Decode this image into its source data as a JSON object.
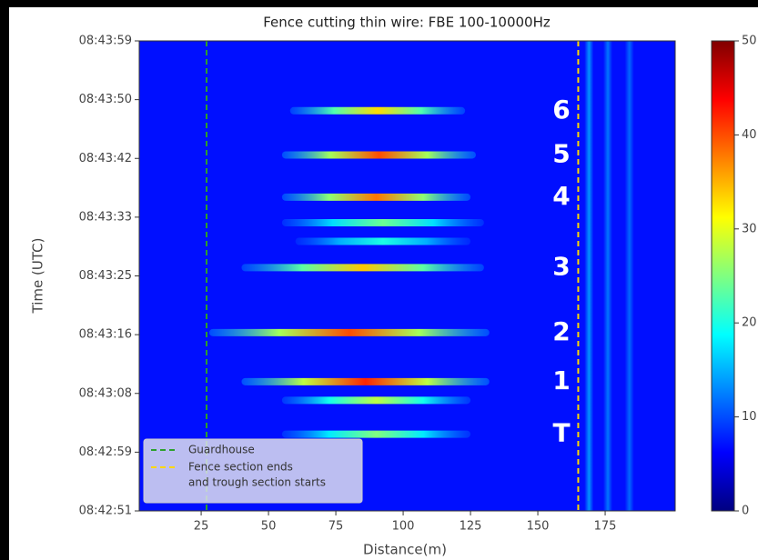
{
  "chart_data": {
    "type": "heatmap",
    "title": "Fence cutting thin wire: FBE 100-10000Hz",
    "xlabel": "Distance(m)",
    "ylabel": "Time (UTC)",
    "xlim": [
      2,
      201
    ],
    "xticks": [
      25,
      50,
      75,
      100,
      125,
      150,
      175
    ],
    "ylim": [
      0,
      68
    ],
    "yticks": [
      {
        "value": 0,
        "label": "08:42:51"
      },
      {
        "value": 8.5,
        "label": "08:42:59"
      },
      {
        "value": 17,
        "label": "08:43:08"
      },
      {
        "value": 25.5,
        "label": "08:43:16"
      },
      {
        "value": 34,
        "label": "08:43:25"
      },
      {
        "value": 42.5,
        "label": "08:43:33"
      },
      {
        "value": 51,
        "label": "08:43:42"
      },
      {
        "value": 59.5,
        "label": "08:43:50"
      },
      {
        "value": 68,
        "label": "08:43:59"
      }
    ],
    "clim": [
      0,
      50
    ],
    "cticks": [
      0,
      10,
      20,
      30,
      40,
      50
    ],
    "colormap": "jet",
    "base_level": 7,
    "events": [
      {
        "label": "6",
        "time": 57.9,
        "x": [
          58,
          123
        ],
        "peak": 33
      },
      {
        "label": "5",
        "time": 51.5,
        "x": [
          55,
          127
        ],
        "peak": 40
      },
      {
        "label": "4",
        "time": 45.4,
        "x": [
          55,
          125
        ],
        "peak": 38
      },
      {
        "label": null,
        "time": 41.7,
        "x": [
          55,
          130
        ],
        "peak": 24
      },
      {
        "label": null,
        "time": 39,
        "x": [
          60,
          125
        ],
        "peak": 20
      },
      {
        "label": "3",
        "time": 35.2,
        "x": [
          40,
          130
        ],
        "peak": 34
      },
      {
        "label": "2",
        "time": 25.8,
        "x": [
          28,
          132
        ],
        "peak": 40
      },
      {
        "label": "1",
        "time": 18.7,
        "x": [
          40,
          132
        ],
        "peak": 42
      },
      {
        "label": null,
        "time": 16,
        "x": [
          55,
          125
        ],
        "peak": 28
      },
      {
        "label": "T",
        "time": 11.1,
        "x": [
          55,
          125
        ],
        "peak": 25
      }
    ],
    "streaks": [
      {
        "distance": 169,
        "level": 16
      },
      {
        "distance": 176,
        "level": 14
      },
      {
        "distance": 184,
        "level": 13
      }
    ],
    "lines": [
      {
        "name": [
          "Guardhouse"
        ],
        "distance": 27,
        "color": "#2ca02c"
      },
      {
        "name": [
          "Fence section ends",
          "and trough section starts"
        ],
        "distance": 165,
        "color": "#ffd700"
      }
    ]
  }
}
